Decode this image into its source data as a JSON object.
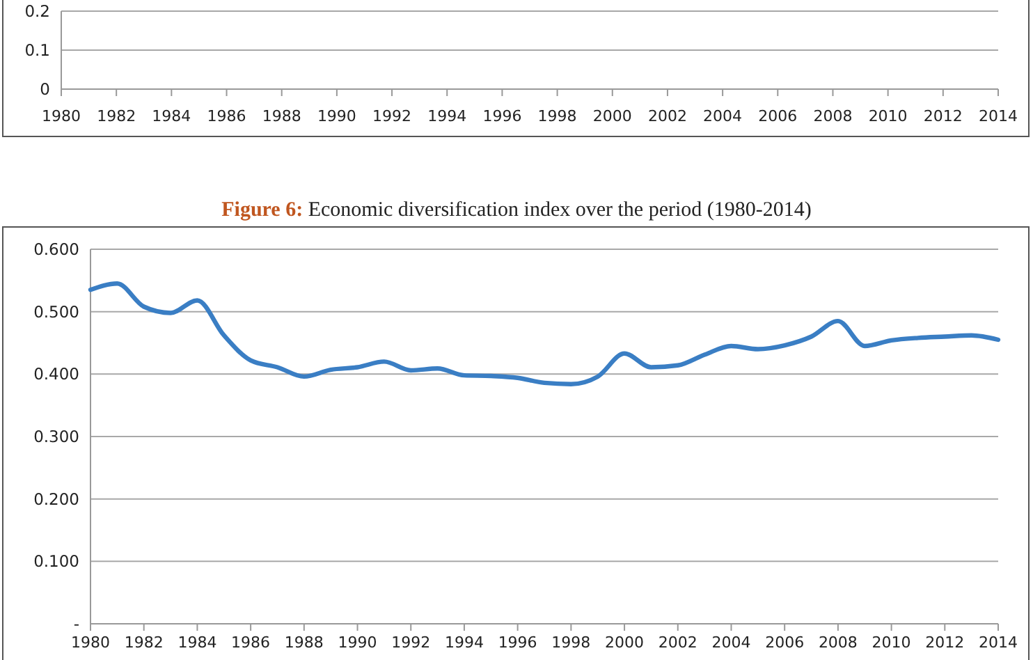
{
  "chart_data": [
    {
      "type": "line",
      "xlim": [
        1980,
        2014
      ],
      "xticks": [
        1980,
        1982,
        1984,
        1986,
        1988,
        1990,
        1992,
        1994,
        1996,
        1998,
        2000,
        2002,
        2004,
        2006,
        2008,
        2010,
        2012,
        2014
      ],
      "ylim": [
        0,
        0.2
      ],
      "yticks": [
        0,
        0.1,
        0.2
      ],
      "grid": "y"
    },
    {
      "type": "line",
      "title": "Figure 6: Economic diversification index over the period (1980-2014)",
      "xlim": [
        1980,
        2014
      ],
      "xticks": [
        1980,
        1982,
        1984,
        1986,
        1988,
        1990,
        1992,
        1994,
        1996,
        1998,
        2000,
        2002,
        2004,
        2006,
        2008,
        2010,
        2012,
        2014
      ],
      "ylim": [
        0,
        0.6
      ],
      "yticks": [
        {
          "value": 0,
          "label": "-"
        },
        {
          "value": 0.1,
          "label": "0.100"
        },
        {
          "value": 0.2,
          "label": "0.200"
        },
        {
          "value": 0.3,
          "label": "0.300"
        },
        {
          "value": 0.4,
          "label": "0.400"
        },
        {
          "value": 0.5,
          "label": "0.500"
        },
        {
          "value": 0.6,
          "label": "0.600"
        }
      ],
      "grid": "y",
      "marker": "none",
      "line_style": "solid",
      "series": [
        {
          "color": "#3a7ec4",
          "x": [
            1980,
            1981,
            1982,
            1983,
            1984,
            1985,
            1986,
            1987,
            1988,
            1989,
            1990,
            1991,
            1992,
            1993,
            1994,
            1995,
            1996,
            1997,
            1998,
            1999,
            2000,
            2001,
            2002,
            2003,
            2004,
            2005,
            2006,
            2007,
            2008,
            2009,
            2010,
            2011,
            2012,
            2013,
            2014
          ],
          "values": [
            0.535,
            0.545,
            0.508,
            0.498,
            0.518,
            0.462,
            0.422,
            0.411,
            0.396,
            0.407,
            0.411,
            0.42,
            0.406,
            0.409,
            0.398,
            0.397,
            0.394,
            0.386,
            0.384,
            0.396,
            0.433,
            0.411,
            0.414,
            0.431,
            0.445,
            0.44,
            0.446,
            0.46,
            0.485,
            0.445,
            0.454,
            0.458,
            0.46,
            0.462,
            0.455
          ]
        }
      ]
    }
  ]
}
